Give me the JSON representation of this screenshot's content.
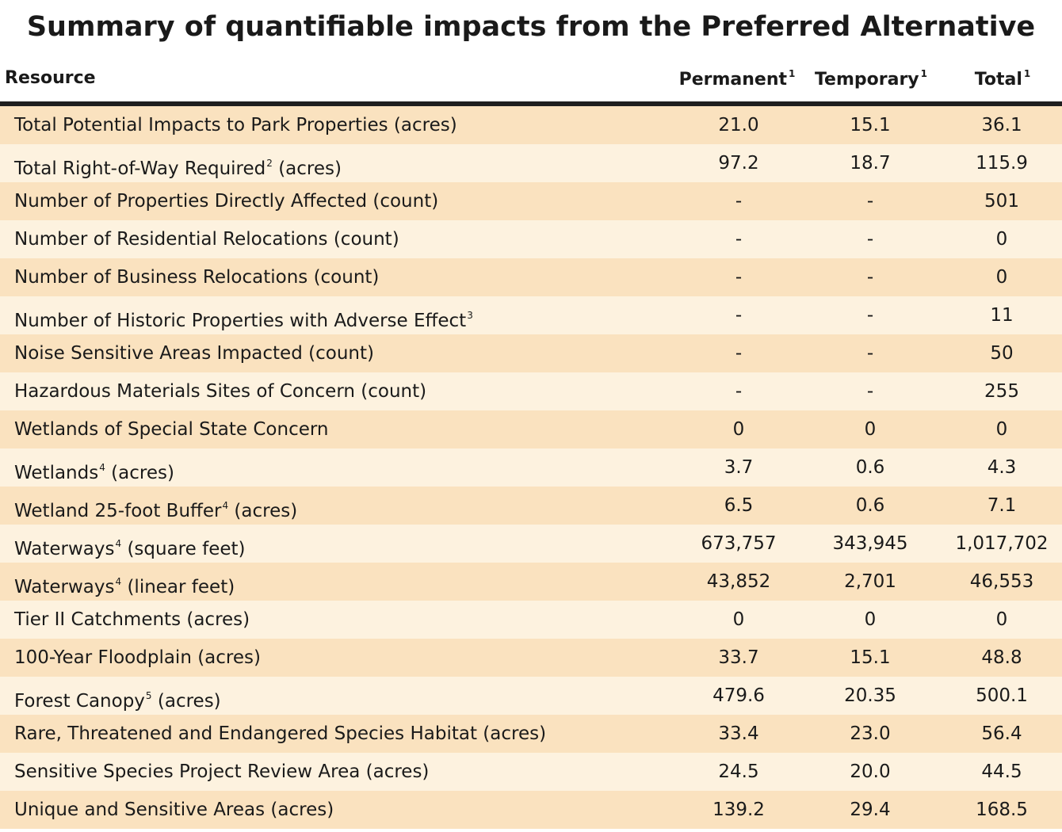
{
  "title": "Summary of quantifiable impacts from the Preferred Alternative",
  "header": {
    "resource": "Resource",
    "permanent": "Permanent",
    "permanent_note": "1",
    "temporary": "Temporary",
    "temporary_note": "1",
    "total": "Total",
    "total_note": "1"
  },
  "rows": [
    {
      "resource": "Total Potential Impacts to Park Properties (acres)",
      "pre": "Total Potential Impacts to Park Properties (acres)",
      "note": "",
      "post": "",
      "permanent": "21.0",
      "temporary": "15.1",
      "total": "36.1"
    },
    {
      "resource": "Total Right-of-Way Required² (acres)",
      "pre": "Total Right-of-Way Required",
      "note": "2",
      "post": " (acres)",
      "permanent": "97.2",
      "temporary": "18.7",
      "total": "115.9"
    },
    {
      "resource": "Number of Properties Directly Affected (count)",
      "pre": "Number of Properties Directly Affected (count)",
      "note": "",
      "post": "",
      "permanent": "-",
      "temporary": "-",
      "total": "501"
    },
    {
      "resource": "Number of Residential Relocations (count)",
      "pre": "Number of Residential Relocations (count)",
      "note": "",
      "post": "",
      "permanent": "-",
      "temporary": "-",
      "total": "0"
    },
    {
      "resource": "Number of Business Relocations (count)",
      "pre": "Number of Business Relocations (count)",
      "note": "",
      "post": "",
      "permanent": "-",
      "temporary": "-",
      "total": "0"
    },
    {
      "resource": "Number of Historic Properties with Adverse Effect³",
      "pre": "Number of Historic Properties with Adverse Effect",
      "note": "3",
      "post": "",
      "permanent": "-",
      "temporary": "-",
      "total": "11"
    },
    {
      "resource": "Noise Sensitive Areas Impacted (count)",
      "pre": "Noise Sensitive Areas Impacted (count)",
      "note": "",
      "post": "",
      "permanent": "-",
      "temporary": "-",
      "total": "50"
    },
    {
      "resource": "Hazardous Materials Sites of Concern (count)",
      "pre": "Hazardous Materials Sites of Concern (count)",
      "note": "",
      "post": "",
      "permanent": "-",
      "temporary": "-",
      "total": "255"
    },
    {
      "resource": "Wetlands of Special State Concern",
      "pre": "Wetlands of Special State Concern",
      "note": "",
      "post": "",
      "permanent": "0",
      "temporary": "0",
      "total": "0"
    },
    {
      "resource": "Wetlands⁴ (acres)",
      "pre": "Wetlands",
      "note": "4",
      "post": " (acres)",
      "permanent": "3.7",
      "temporary": "0.6",
      "total": "4.3"
    },
    {
      "resource": "Wetland 25-foot Buffer⁴ (acres)",
      "pre": "Wetland 25-foot Buffer",
      "note": "4",
      "post": " (acres)",
      "permanent": "6.5",
      "temporary": "0.6",
      "total": "7.1"
    },
    {
      "resource": "Waterways⁴ (square feet)",
      "pre": "Waterways",
      "note": "4",
      "post": " (square feet)",
      "permanent": "673,757",
      "temporary": "343,945",
      "total": "1,017,702"
    },
    {
      "resource": "Waterways⁴ (linear feet)",
      "pre": "Waterways",
      "note": "4",
      "post": " (linear feet)",
      "permanent": "43,852",
      "temporary": "2,701",
      "total": "46,553"
    },
    {
      "resource": "Tier II Catchments (acres)",
      "pre": "Tier II Catchments (acres)",
      "note": "",
      "post": "",
      "permanent": "0",
      "temporary": "0",
      "total": "0"
    },
    {
      "resource": "100-Year Floodplain (acres)",
      "pre": "100-Year Floodplain (acres)",
      "note": "",
      "post": "",
      "permanent": "33.7",
      "temporary": "15.1",
      "total": "48.8"
    },
    {
      "resource": "Forest Canopy⁵ (acres)",
      "pre": "Forest Canopy",
      "note": "5",
      "post": " (acres)",
      "permanent": "479.6",
      "temporary": "20.35",
      "total": "500.1"
    },
    {
      "resource": "Rare, Threatened and Endangered Species Habitat (acres)",
      "pre": "Rare, Threatened and Endangered Species Habitat (acres)",
      "note": "",
      "post": "",
      "permanent": "33.4",
      "temporary": "23.0",
      "total": "56.4"
    },
    {
      "resource": "Sensitive Species Project Review Area (acres)",
      "pre": "Sensitive Species Project Review Area (acres)",
      "note": "",
      "post": "",
      "permanent": "24.5",
      "temporary": "20.0",
      "total": "44.5"
    },
    {
      "resource": "Unique and Sensitive Areas (acres)",
      "pre": "Unique and Sensitive Areas (acres)",
      "note": "",
      "post": "",
      "permanent": "139.2",
      "temporary": "29.4",
      "total": "168.5"
    }
  ],
  "colors": {
    "row_dark": "#fae2bf",
    "row_light": "#fdf2df",
    "rule": "#1f1f1f"
  }
}
